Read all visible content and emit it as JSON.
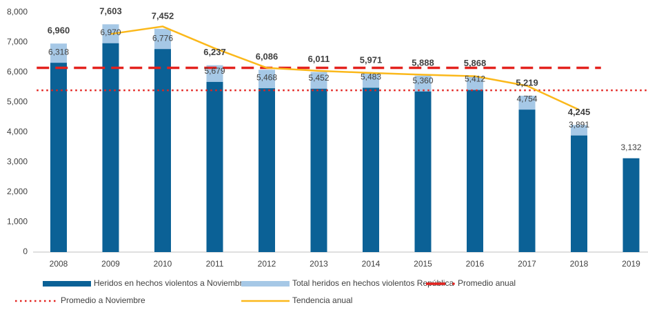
{
  "chart_data": {
    "type": "bar",
    "categories": [
      "2008",
      "2009",
      "2010",
      "2011",
      "2012",
      "2013",
      "2014",
      "2015",
      "2016",
      "2017",
      "2018",
      "2019"
    ],
    "series": [
      {
        "name": "Heridos en hechos violentos a Noviembre",
        "color": "#0b6196",
        "kind": "bar",
        "values": [
          6318,
          6970,
          6776,
          5679,
          5468,
          5452,
          5483,
          5360,
          5412,
          4754,
          3891,
          3132
        ],
        "value_labels": [
          "6,318",
          "6,970",
          "6,776",
          "5,679",
          "5,468",
          "5,452",
          "5,483",
          "5,360",
          "5,412",
          "4,754",
          "3,891",
          "3,132"
        ]
      },
      {
        "name": "Total heridos en hechos violentos República",
        "color": "#a6c8e6",
        "kind": "bar",
        "values": [
          6960,
          7603,
          7452,
          6237,
          6086,
          6011,
          5971,
          5888,
          5868,
          5219,
          4245,
          null
        ],
        "value_labels": [
          "6,960",
          "7,603",
          "7,452",
          "6,237",
          "6,086",
          "6,011",
          "5,971",
          "5,888",
          "5,868",
          "5,219",
          "4,245",
          null
        ]
      },
      {
        "name": "Promedio anual",
        "color": "#e3221e",
        "kind": "dashed",
        "values": [
          6150,
          6150,
          6150,
          6150,
          6150,
          6150,
          6150,
          6150,
          6150,
          6150,
          6150,
          null
        ]
      },
      {
        "name": "Promedio a Noviembre",
        "color": "#e3221e",
        "kind": "dotted",
        "values": [
          5400,
          5400,
          5400,
          5400,
          5400,
          5400,
          5400,
          5400,
          5400,
          5400,
          5400,
          5400
        ]
      },
      {
        "name": "Tendencia anual",
        "color": "#fbb81a",
        "kind": "line",
        "values": [
          null,
          7280,
          7530,
          6800,
          6150,
          6050,
          5980,
          5920,
          5870,
          5550,
          4750,
          null
        ]
      }
    ],
    "ylim": [
      0,
      8000
    ],
    "yticks": [
      0,
      {
        "value": 1000,
        "label": "1,000"
      },
      {
        "value": 2000,
        "label": "2,000"
      },
      {
        "value": 3000,
        "label": "3,000"
      },
      {
        "value": 4000,
        "label": "4,000"
      },
      {
        "value": 5000,
        "label": "5,000"
      },
      {
        "value": 6000,
        "label": "6,000"
      },
      {
        "value": 7000,
        "label": "7,000"
      },
      {
        "value": 8000,
        "label": "8,000"
      }
    ]
  }
}
